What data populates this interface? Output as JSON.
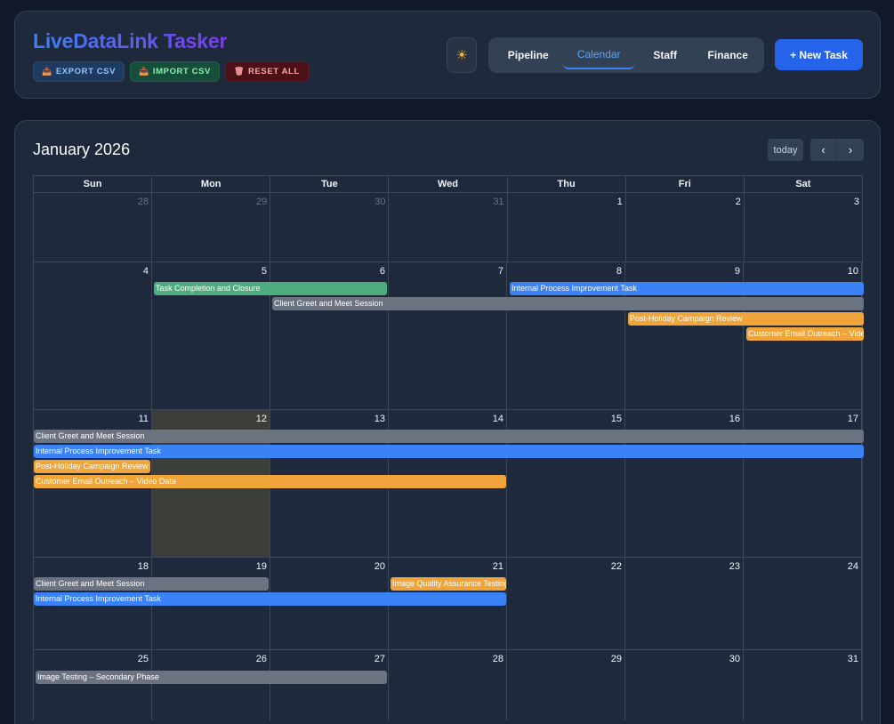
{
  "header": {
    "brand": "LiveDataLink Tasker",
    "actions": [
      {
        "label": "EXPORT CSV",
        "icon": "📤"
      },
      {
        "label": "IMPORT CSV",
        "icon": "📥"
      },
      {
        "label": "RESET ALL",
        "icon": "🗑"
      }
    ],
    "theme_icon": "☀",
    "tabs": [
      "Pipeline",
      "Calendar",
      "Staff",
      "Finance"
    ],
    "active_tab": "Calendar",
    "new_task": "+ New Task"
  },
  "calendar": {
    "title": "January 2026",
    "today_label": "today",
    "prev_icon": "‹",
    "next_icon": "›",
    "weekdays": [
      "Sun",
      "Mon",
      "Tue",
      "Wed",
      "Thu",
      "Fri",
      "Sat"
    ],
    "weeks": [
      {
        "days": [
          "28",
          "29",
          "30",
          "31",
          "1",
          "2",
          "3"
        ]
      },
      {
        "days": [
          "4",
          "5",
          "6",
          "7",
          "8",
          "9",
          "10"
        ]
      },
      {
        "days": [
          "11",
          "12",
          "13",
          "14",
          "15",
          "16",
          "17"
        ]
      },
      {
        "days": [
          "18",
          "19",
          "20",
          "21",
          "22",
          "23",
          "24"
        ]
      },
      {
        "days": [
          "25",
          "26",
          "27",
          "28",
          "29",
          "30",
          "31"
        ]
      }
    ],
    "events": [
      {
        "title": "Task Completion and Closure",
        "color": "#4ead7f"
      },
      {
        "title": "Internal Process Improvement Task",
        "color": "#3b82f6"
      },
      {
        "title": "Client Greet and Meet Session",
        "color": "#6b7280"
      },
      {
        "title": "Post-Holiday Campaign Review",
        "color": "#f0a53b"
      },
      {
        "title": "Customer Email Outreach – Video Data",
        "color": "#f0a53b"
      },
      {
        "title": "Image Quality Assurance Testing",
        "color": "#f0a53b"
      },
      {
        "title": "Image Testing – Secondary Phase",
        "color": "#6b7280"
      }
    ]
  }
}
